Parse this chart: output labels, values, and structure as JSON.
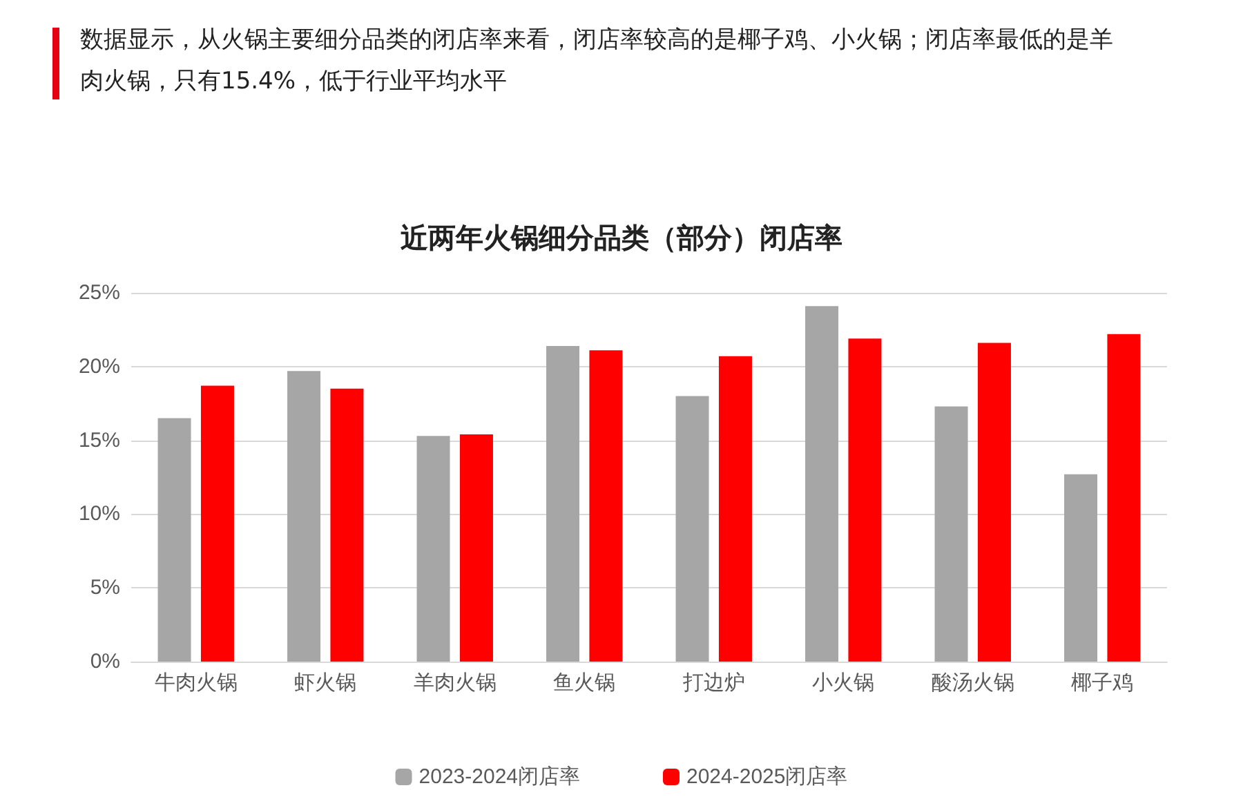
{
  "chart_data": {
    "type": "bar",
    "title": "近两年火锅细分品类（部分）闭店率",
    "subtitle": "数据显示，从火锅主要细分品类的闭店率来看，闭店率较高的是椰子鸡、小火锅；闭店率最低的是羊肉火锅，只有15.4%，低于行业平均水平",
    "categories": [
      "牛肉火锅",
      "虾火锅",
      "羊肉火锅",
      "鱼火锅",
      "打边炉",
      "小火锅",
      "酸汤火锅",
      "椰子鸡"
    ],
    "series": [
      {
        "name": "2023-2024闭店率",
        "color": "#a6a6a6",
        "values": [
          16.5,
          19.7,
          15.3,
          21.4,
          18.0,
          24.1,
          17.3,
          12.7
        ]
      },
      {
        "name": "2024-2025闭店率",
        "color": "#ff0000",
        "values": [
          18.7,
          18.5,
          15.4,
          21.1,
          20.7,
          21.9,
          21.6,
          22.2
        ]
      }
    ],
    "ylim": [
      0,
      25
    ],
    "yticks": [
      {
        "value": 0,
        "label": "0%"
      },
      {
        "value": 5,
        "label": "5%"
      },
      {
        "value": 10,
        "label": "10%"
      },
      {
        "value": 15,
        "label": "15%"
      },
      {
        "value": 20,
        "label": "20%"
      },
      {
        "value": 25,
        "label": "25%"
      }
    ],
    "grid": "y",
    "legend": "bottom"
  }
}
